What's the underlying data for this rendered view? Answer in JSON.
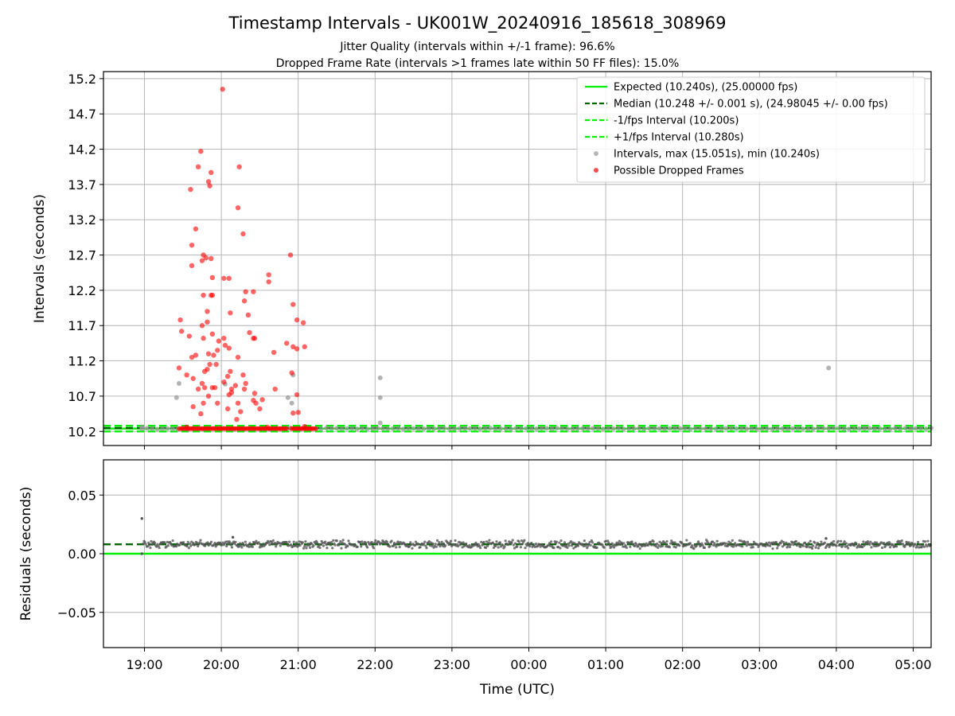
{
  "title": "Timestamp Intervals - UK001W_20240916_185618_308969",
  "subtitle_lines": [
    "Jitter Quality (intervals within +/-1 frame): 96.6%",
    "Dropped Frame Rate (intervals >1 frames late within 50 FF files): 15.0%"
  ],
  "colors": {
    "expected": "#00ee00",
    "median": "#006400",
    "bounds": "#00ee00",
    "intervals": "#999999",
    "dropped": "#ff0000",
    "residuals": "#555555",
    "grid": "#b0b0b0"
  },
  "chart_data": [
    {
      "type": "scatter",
      "ylabel": "Intervals (seconds)",
      "x_axis": "time",
      "xlim": [
        "18:28",
        "05:14"
      ],
      "ylim": [
        10.0,
        15.3
      ],
      "yticks": [
        "10.2",
        "10.7",
        "11.2",
        "11.7",
        "12.2",
        "12.7",
        "13.2",
        "13.7",
        "14.2",
        "14.7",
        "15.2"
      ],
      "grid": true,
      "legend_position": "top-right",
      "lines": [
        {
          "name": "Expected (10.240s), (25.00000 fps)",
          "y": 10.24,
          "style": "solid",
          "color": "#00ee00"
        },
        {
          "name": "Median (10.248 +/- 0.001 s), (24.98045 +/- 0.00 fps)",
          "y": 10.248,
          "style": "dashed",
          "color": "#006400"
        },
        {
          "name": "-1/fps Interval (10.200s)",
          "y": 10.2,
          "style": "dashed",
          "color": "#00ee00"
        },
        {
          "name": "+1/fps Interval (10.280s)",
          "y": 10.28,
          "style": "dashed",
          "color": "#00ee00"
        }
      ],
      "series": [
        {
          "name": "Intervals, max (15.051s), min (10.240s)",
          "color": "#999999",
          "points": [
            [
              "19:25",
              10.68
            ],
            [
              "19:27",
              10.88
            ],
            [
              "20:03",
              10.87
            ],
            [
              "20:52",
              10.68
            ],
            [
              "20:55",
              10.6
            ],
            [
              "20:56",
              11.0
            ],
            [
              "22:04",
              10.96
            ],
            [
              "22:04",
              10.68
            ],
            [
              "22:04",
              10.32
            ],
            [
              "03:54",
              11.1
            ],
            [
              "18:58",
              10.26
            ]
          ],
          "baseline": {
            "from": "18:58",
            "to": "05:14",
            "y": 10.24
          }
        },
        {
          "name": "Possible Dropped Frames",
          "color": "#ff0000",
          "points": [
            [
              "20:01",
              15.05
            ],
            [
              "19:44",
              14.17
            ],
            [
              "19:42",
              13.95
            ],
            [
              "19:52",
              13.87
            ],
            [
              "20:14",
              13.95
            ],
            [
              "19:50",
              13.74
            ],
            [
              "19:51",
              13.68
            ],
            [
              "19:36",
              13.63
            ],
            [
              "20:13",
              13.37
            ],
            [
              "19:40",
              13.07
            ],
            [
              "20:17",
              13.0
            ],
            [
              "19:37",
              12.84
            ],
            [
              "19:46",
              12.7
            ],
            [
              "19:48",
              12.66
            ],
            [
              "19:45",
              12.62
            ],
            [
              "19:52",
              12.65
            ],
            [
              "20:54",
              12.7
            ],
            [
              "19:37",
              12.55
            ],
            [
              "20:37",
              12.42
            ],
            [
              "20:37",
              12.32
            ],
            [
              "20:02",
              12.37
            ],
            [
              "20:06",
              12.37
            ],
            [
              "19:53",
              12.38
            ],
            [
              "20:19",
              12.18
            ],
            [
              "20:25",
              12.18
            ],
            [
              "19:52",
              12.13
            ],
            [
              "19:53",
              12.13
            ],
            [
              "19:46",
              12.13
            ],
            [
              "20:18",
              12.05
            ],
            [
              "20:56",
              12.0
            ],
            [
              "19:49",
              11.9
            ],
            [
              "20:07",
              11.88
            ],
            [
              "20:21",
              11.85
            ],
            [
              "19:28",
              11.78
            ],
            [
              "19:45",
              11.7
            ],
            [
              "19:49",
              11.75
            ],
            [
              "20:59",
              11.78
            ],
            [
              "21:04",
              11.74
            ],
            [
              "19:29",
              11.62
            ],
            [
              "19:35",
              11.55
            ],
            [
              "20:22",
              11.6
            ],
            [
              "20:25",
              11.52
            ],
            [
              "20:26",
              11.52
            ],
            [
              "19:53",
              11.58
            ],
            [
              "19:58",
              11.48
            ],
            [
              "20:02",
              11.52
            ],
            [
              "20:51",
              11.45
            ],
            [
              "20:56",
              11.4
            ],
            [
              "20:59",
              11.37
            ],
            [
              "21:05",
              11.4
            ],
            [
              "19:46",
              11.52
            ],
            [
              "20:03",
              11.42
            ],
            [
              "20:06",
              11.38
            ],
            [
              "19:50",
              11.3
            ],
            [
              "19:54",
              11.28
            ],
            [
              "19:57",
              11.35
            ],
            [
              "19:40",
              11.28
            ],
            [
              "20:41",
              11.32
            ],
            [
              "19:27",
              11.1
            ],
            [
              "19:37",
              11.25
            ],
            [
              "19:51",
              11.15
            ],
            [
              "19:56",
              11.15
            ],
            [
              "20:13",
              11.25
            ],
            [
              "20:07",
              11.05
            ],
            [
              "19:33",
              11.0
            ],
            [
              "19:47",
              11.05
            ],
            [
              "19:49",
              11.08
            ],
            [
              "19:38",
              10.95
            ],
            [
              "20:05",
              10.98
            ],
            [
              "20:17",
              11.0
            ],
            [
              "20:02",
              10.9
            ],
            [
              "20:11",
              10.85
            ],
            [
              "20:19",
              10.88
            ],
            [
              "20:55",
              11.03
            ],
            [
              "19:45",
              10.88
            ],
            [
              "19:47",
              10.82
            ],
            [
              "19:53",
              10.82
            ],
            [
              "19:55",
              10.82
            ],
            [
              "20:08",
              10.8
            ],
            [
              "20:18",
              10.8
            ],
            [
              "19:42",
              10.8
            ],
            [
              "20:42",
              10.8
            ],
            [
              "19:50",
              10.7
            ],
            [
              "20:06",
              10.72
            ],
            [
              "20:08",
              10.75
            ],
            [
              "20:26",
              10.74
            ],
            [
              "20:25",
              10.64
            ],
            [
              "20:27",
              10.6
            ],
            [
              "20:32",
              10.65
            ],
            [
              "20:59",
              10.72
            ],
            [
              "19:46",
              10.6
            ],
            [
              "20:13",
              10.6
            ],
            [
              "20:05",
              10.52
            ],
            [
              "19:57",
              10.6
            ],
            [
              "19:38",
              10.55
            ],
            [
              "19:44",
              10.45
            ],
            [
              "20:15",
              10.48
            ],
            [
              "20:12",
              10.37
            ],
            [
              "20:56",
              10.46
            ],
            [
              "21:00",
              10.47
            ],
            [
              "20:30",
              10.52
            ],
            [
              "19:33",
              10.26
            ],
            [
              "20:36",
              10.26
            ],
            [
              "21:05",
              10.27
            ]
          ],
          "baseline": {
            "from": "19:27",
            "to": "21:14",
            "y": 10.24
          }
        }
      ]
    },
    {
      "type": "scatter",
      "xlabel": "Time (UTC)",
      "ylabel": "Residuals (seconds)",
      "x_axis": "time",
      "xlim": [
        "18:28",
        "05:14"
      ],
      "ylim": [
        -0.08,
        0.08
      ],
      "yticks": [
        "−0.05",
        "0.00",
        "0.05"
      ],
      "xticks": [
        "19:00",
        "20:00",
        "21:00",
        "22:00",
        "23:00",
        "00:00",
        "01:00",
        "02:00",
        "03:00",
        "04:00",
        "05:00"
      ],
      "grid": true,
      "lines": [
        {
          "name": "expected",
          "y": 0.0,
          "style": "solid",
          "color": "#00ee00"
        },
        {
          "name": "median",
          "y": 0.008,
          "style": "dashed",
          "color": "#006400"
        }
      ],
      "series": [
        {
          "name": "residuals",
          "color": "#555555",
          "points": [
            [
              "18:58",
              0.03
            ],
            [
              "18:58",
              0.0
            ],
            [
              "20:09",
              0.014
            ],
            [
              "03:52",
              0.013
            ]
          ],
          "band": {
            "from": "18:59",
            "to": "05:14",
            "center": 0.008,
            "spread": 0.004
          }
        }
      ]
    }
  ]
}
